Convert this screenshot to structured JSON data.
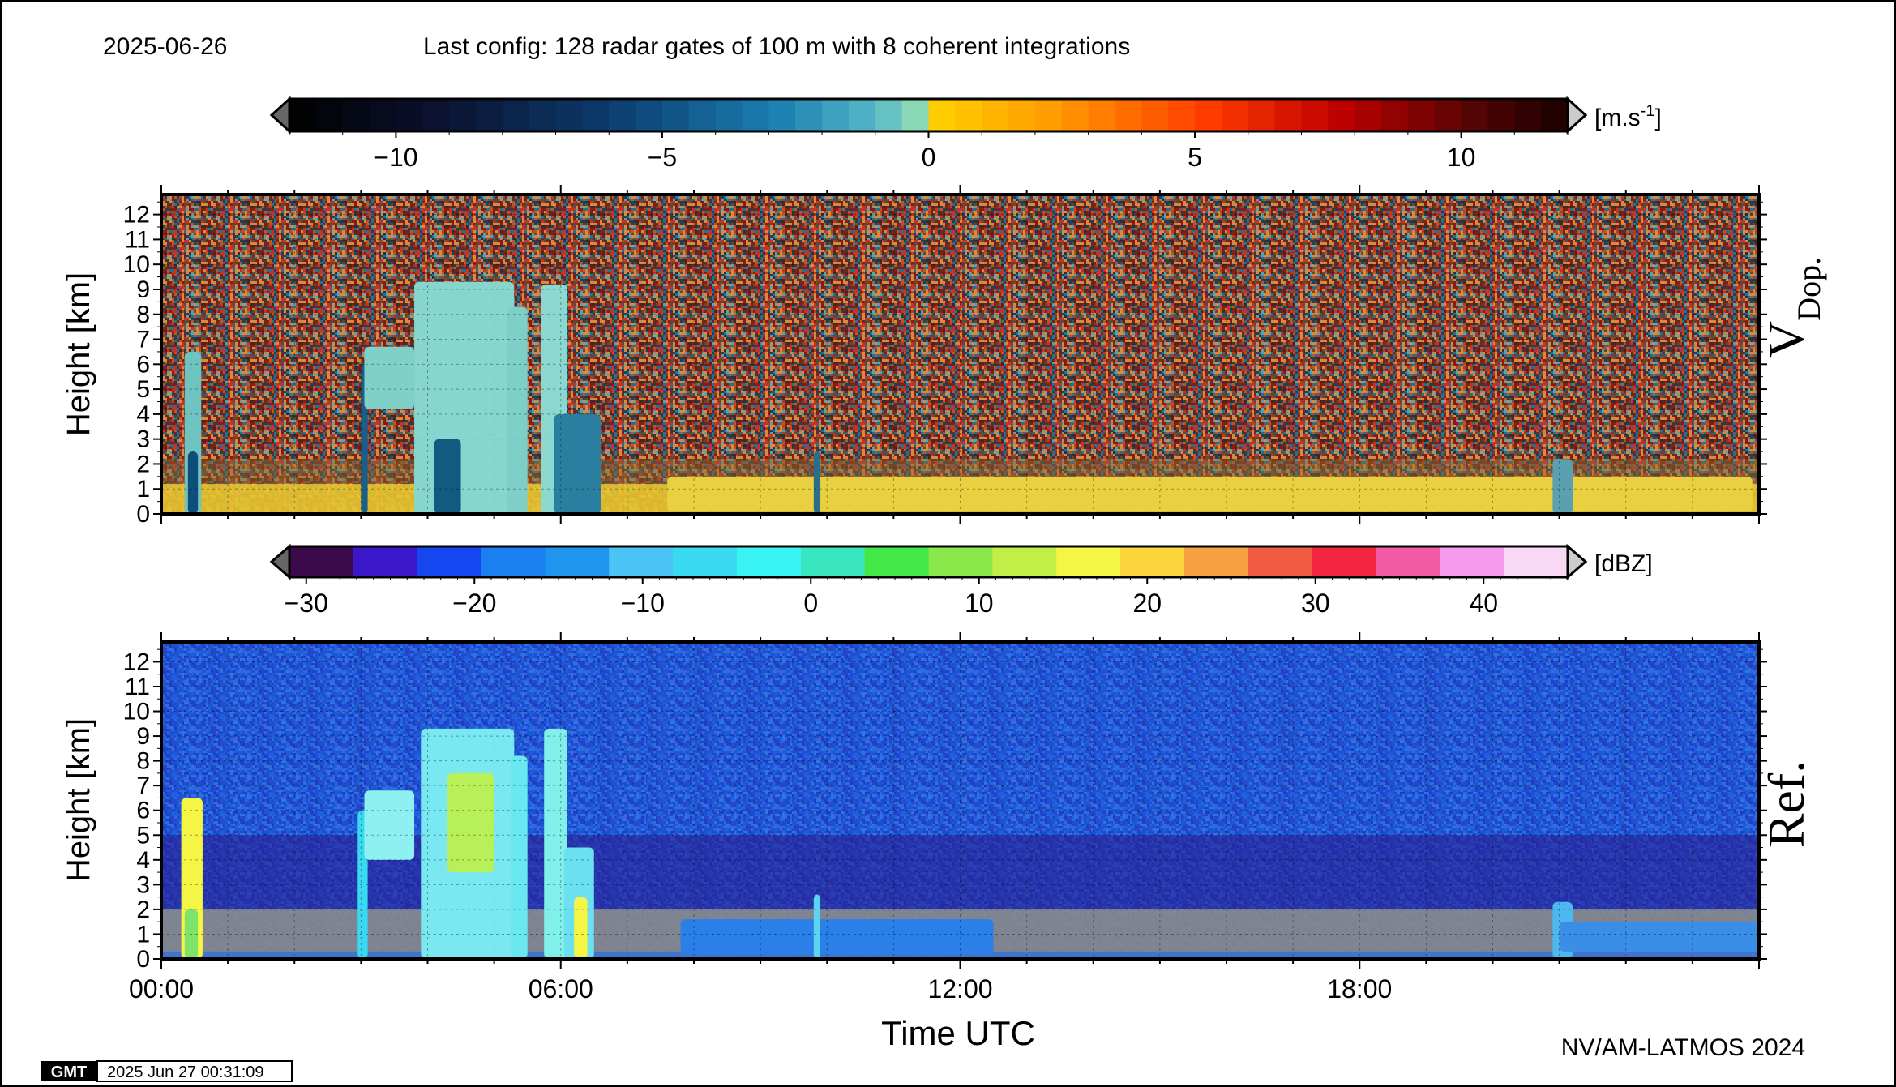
{
  "header": {
    "date": "2025-06-26",
    "config": "Last config: 128 radar gates of 100 m with 8 coherent integrations"
  },
  "footer": {
    "gmt_logo": "GMT",
    "timestamp": "2025 Jun 27 00:31:09",
    "credit": "NV/AM-LATMOS 2024"
  },
  "colorbars": {
    "velocity": {
      "unit_base": "[m.s",
      "unit_exp": "-1",
      "unit_close": "]",
      "ticks": [
        "−10",
        "−5",
        "0",
        "5",
        "10"
      ],
      "tick_values": [
        -10,
        -5,
        0,
        5,
        10
      ],
      "range": [
        -12,
        12
      ]
    },
    "reflectivity": {
      "unit": "[dBZ]",
      "ticks": [
        "−30",
        "−20",
        "−10",
        "0",
        "10",
        "20",
        "30",
        "40"
      ],
      "tick_values": [
        -30,
        -20,
        -10,
        0,
        10,
        20,
        30,
        40
      ],
      "range": [
        -31,
        45
      ]
    }
  },
  "chart_data": [
    {
      "type": "heatmap",
      "title": "",
      "panel_label": "V",
      "panel_label_sub": "Dop.",
      "ylabel": "Height [km]",
      "xlabel": "",
      "ylim": [
        0,
        12.8
      ],
      "xlim": [
        0,
        24
      ],
      "y_ticks": [
        "0",
        "1",
        "2",
        "3",
        "4",
        "5",
        "6",
        "7",
        "8",
        "9",
        "10",
        "11",
        "12"
      ],
      "y_tick_values": [
        0,
        1,
        2,
        3,
        4,
        5,
        6,
        7,
        8,
        9,
        10,
        11,
        12
      ],
      "colorscale_unit": "m.s-1",
      "grid": true,
      "notes": "Doppler velocity; noise above boundary layer, cloud systems near 00:30, 03:00-06:30"
    },
    {
      "type": "heatmap",
      "title": "",
      "panel_label": "Ref.",
      "ylabel": "Height [km]",
      "xlabel": "Time UTC",
      "ylim": [
        0,
        12.8
      ],
      "xlim": [
        0,
        24
      ],
      "y_ticks": [
        "0",
        "1",
        "2",
        "3",
        "4",
        "5",
        "6",
        "7",
        "8",
        "9",
        "10",
        "11",
        "12"
      ],
      "y_tick_values": [
        0,
        1,
        2,
        3,
        4,
        5,
        6,
        7,
        8,
        9,
        10,
        11,
        12
      ],
      "x_ticks": [
        "00:00",
        "06:00",
        "12:00",
        "18:00"
      ],
      "x_tick_values": [
        0,
        6,
        12,
        18
      ],
      "colorscale_unit": "dBZ",
      "grid": true,
      "notes": "Reflectivity; clouds 00:15-00:40 (0-6.5 km), 03:00-06:30 (0-9.5 km), low clutter 08:00-24:00"
    }
  ]
}
